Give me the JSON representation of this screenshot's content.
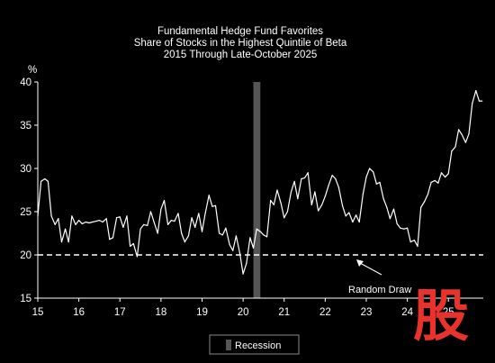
{
  "chart_data": {
    "type": "line",
    "title": [
      "Fundamental Hedge Fund Favorites",
      "Share of Stocks in the Highest Quintile of Beta",
      "2015 Through Late-October 2025"
    ],
    "ylabel": "%",
    "ylim": [
      15,
      40
    ],
    "yticks": [
      "15",
      "20",
      "25",
      "30",
      "35",
      "40"
    ],
    "xlim": [
      2015,
      2025.85
    ],
    "xticks": [
      {
        "value": 2015,
        "label": "15"
      },
      {
        "value": 2016,
        "label": "16"
      },
      {
        "value": 2017,
        "label": "17"
      },
      {
        "value": 2018,
        "label": "18"
      },
      {
        "value": 2019,
        "label": "19"
      },
      {
        "value": 2020,
        "label": "20"
      },
      {
        "value": 2021,
        "label": "21"
      },
      {
        "value": 2022,
        "label": "22"
      },
      {
        "value": 2023,
        "label": "23"
      },
      {
        "value": 2024,
        "label": "24"
      },
      {
        "value": 2025,
        "label": "25"
      }
    ],
    "grid": false,
    "line_color": "#ffffff",
    "reference_line": {
      "y": 20,
      "style": "dashed",
      "color": "#ffffff",
      "label": "Random Draw"
    },
    "recession": {
      "start": 2020.25,
      "end": 2020.42,
      "color": "#555555"
    },
    "legend": {
      "label": "Recession",
      "placement": "bottom-center"
    },
    "series": [
      {
        "x": [
          2015.0,
          2015.08,
          2015.17,
          2015.25,
          2015.33,
          2015.42,
          2015.5,
          2015.58,
          2015.67,
          2015.75,
          2015.83,
          2015.92,
          2016.0,
          2016.08,
          2016.17,
          2016.25,
          2016.33,
          2016.42,
          2016.5,
          2016.58,
          2016.67,
          2016.75,
          2016.83,
          2016.92,
          2017.0,
          2017.08,
          2017.17,
          2017.25,
          2017.33,
          2017.42,
          2017.5,
          2017.58,
          2017.67,
          2017.75,
          2017.83,
          2017.92,
          2018.0,
          2018.08,
          2018.17,
          2018.25,
          2018.33,
          2018.42,
          2018.5,
          2018.58,
          2018.67,
          2018.75,
          2018.83,
          2018.92,
          2019.0,
          2019.08,
          2019.17,
          2019.25,
          2019.33,
          2019.42,
          2019.5,
          2019.58,
          2019.67,
          2019.75,
          2019.83,
          2019.92,
          2020.0,
          2020.08,
          2020.17,
          2020.25,
          2020.33,
          2020.42,
          2020.5,
          2020.58,
          2020.67,
          2020.75,
          2020.83,
          2020.92,
          2021.0,
          2021.08,
          2021.17,
          2021.25,
          2021.33,
          2021.42,
          2021.5,
          2021.58,
          2021.67,
          2021.75,
          2021.83,
          2021.92,
          2022.0,
          2022.08,
          2022.17,
          2022.25,
          2022.33,
          2022.42,
          2022.5,
          2022.58,
          2022.67,
          2022.75,
          2022.83,
          2022.92,
          2023.0,
          2023.08,
          2023.17,
          2023.25,
          2023.33,
          2023.42,
          2023.5,
          2023.58,
          2023.67,
          2023.75,
          2023.83,
          2023.92,
          2024.0,
          2024.08,
          2024.17,
          2024.25,
          2024.33,
          2024.42,
          2024.5,
          2024.58,
          2024.67,
          2024.75,
          2024.83,
          2024.92,
          2025.0,
          2025.08,
          2025.17,
          2025.25,
          2025.33,
          2025.42,
          2025.5,
          2025.58,
          2025.67,
          2025.75,
          2025.82
        ],
        "y": [
          24.5,
          28.5,
          28.8,
          28.5,
          24.5,
          23.5,
          24.2,
          21.5,
          23.0,
          21.5,
          24.5,
          23.5,
          24.0,
          23.6,
          23.8,
          23.7,
          23.8,
          23.9,
          24.0,
          23.8,
          24.2,
          21.8,
          22.0,
          24.3,
          24.4,
          23.2,
          24.5,
          21.0,
          21.3,
          19.8,
          23.0,
          23.5,
          23.4,
          25.0,
          23.8,
          22.5,
          25.3,
          26.3,
          23.5,
          24.0,
          23.9,
          24.8,
          22.5,
          21.5,
          22.2,
          24.3,
          23.2,
          24.8,
          22.7,
          24.8,
          26.9,
          25.6,
          25.7,
          22.5,
          22.3,
          23.1,
          21.2,
          20.5,
          22.2,
          20.2,
          17.8,
          19.0,
          22.0,
          20.8,
          23.0,
          22.7,
          22.3,
          22.1,
          26.3,
          25.8,
          27.5,
          26.0,
          24.3,
          25.0,
          27.3,
          28.5,
          26.5,
          28.8,
          28.9,
          29.5,
          25.8,
          27.3,
          25.1,
          25.8,
          26.8,
          28.0,
          29.2,
          28.8,
          27.8,
          25.7,
          24.5,
          24.9,
          23.8,
          24.6,
          23.8,
          27.0,
          29.0,
          30.0,
          29.6,
          28.2,
          28.4,
          26.5,
          25.5,
          24.2,
          25.3,
          23.6,
          23.1,
          23.0,
          23.1,
          21.5,
          21.7,
          21.0,
          25.5,
          26.2,
          27.0,
          28.4,
          28.6,
          28.3,
          29.5,
          29.0,
          29.4,
          32.0,
          32.5,
          34.5,
          33.9,
          33.0,
          34.0,
          37.5,
          39.0,
          37.8,
          37.8
        ]
      }
    ]
  },
  "logo": {
    "text": "股"
  }
}
